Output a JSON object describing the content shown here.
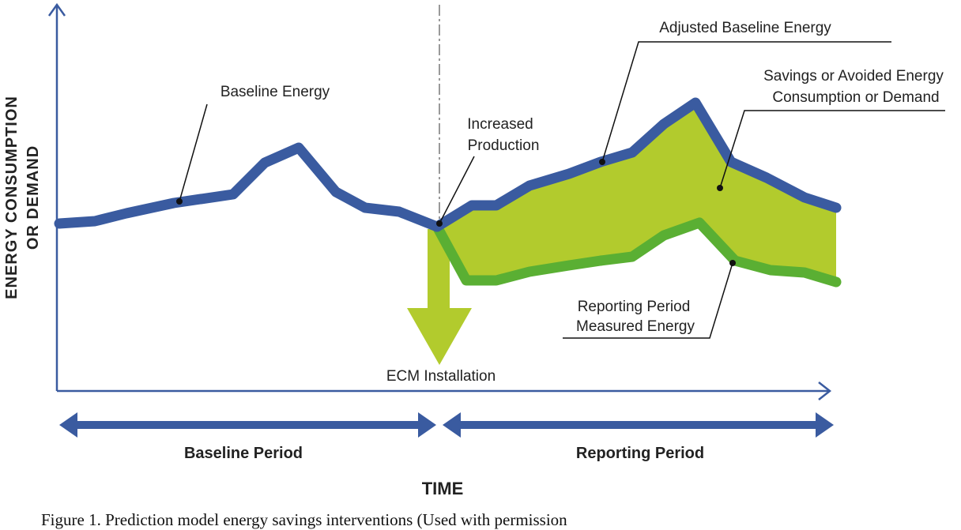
{
  "labels": {
    "y_axis_line1": "ENERGY CONSUMPTION",
    "y_axis_line2": "OR DEMAND",
    "x_axis": "TIME",
    "baseline_energy": "Baseline Energy",
    "increased_production_1": "Increased",
    "increased_production_2": "Production",
    "adjusted_baseline": "Adjusted Baseline Energy",
    "savings_1": "Savings or Avoided Energy",
    "savings_2": "Consumption or Demand",
    "reporting_measured_1": "Reporting Period",
    "reporting_measured_2": "Measured Energy",
    "ecm_installation": "ECM Installation",
    "baseline_period": "Baseline Period",
    "reporting_period": "Reporting Period"
  },
  "caption": "Figure 1. Prediction model energy savings interventions (Used with permission",
  "colors": {
    "baseline_line": "#3a5ba0",
    "measured_line": "#5aaf33",
    "savings_fill": "#b2cb2d",
    "axis": "#3a5ba0"
  }
}
